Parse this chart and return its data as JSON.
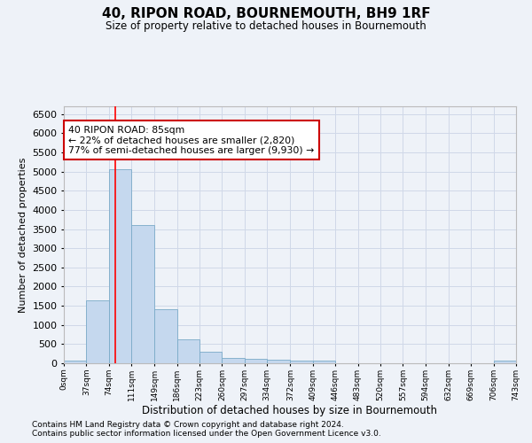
{
  "title": "40, RIPON ROAD, BOURNEMOUTH, BH9 1RF",
  "subtitle": "Size of property relative to detached houses in Bournemouth",
  "xlabel": "Distribution of detached houses by size in Bournemouth",
  "ylabel": "Number of detached properties",
  "bar_color": "#c5d8ee",
  "bar_edge_color": "#7aaac8",
  "grid_color": "#d0d8e8",
  "annotation_text": "40 RIPON ROAD: 85sqm\n← 22% of detached houses are smaller (2,820)\n77% of semi-detached houses are larger (9,930) →",
  "property_size_sqm": 85,
  "bin_edges": [
    0,
    37,
    74,
    111,
    149,
    186,
    223,
    260,
    297,
    334,
    372,
    409,
    446,
    483,
    520,
    557,
    594,
    632,
    669,
    706,
    743
  ],
  "bin_labels": [
    "0sqm",
    "37sqm",
    "74sqm",
    "111sqm",
    "149sqm",
    "186sqm",
    "223sqm",
    "260sqm",
    "297sqm",
    "334sqm",
    "372sqm",
    "409sqm",
    "446sqm",
    "483sqm",
    "520sqm",
    "557sqm",
    "594sqm",
    "632sqm",
    "669sqm",
    "706sqm",
    "743sqm"
  ],
  "bar_heights": [
    70,
    1650,
    5060,
    3600,
    1420,
    620,
    300,
    145,
    115,
    85,
    60,
    60,
    0,
    0,
    0,
    0,
    0,
    0,
    0,
    60
  ],
  "ylim": [
    0,
    6700
  ],
  "yticks": [
    0,
    500,
    1000,
    1500,
    2000,
    2500,
    3000,
    3500,
    4000,
    4500,
    5000,
    5500,
    6000,
    6500
  ],
  "footnote1": "Contains HM Land Registry data © Crown copyright and database right 2024.",
  "footnote2": "Contains public sector information licensed under the Open Government Licence v3.0.",
  "background_color": "#eef2f8",
  "plot_bg_color": "#eef2f8"
}
